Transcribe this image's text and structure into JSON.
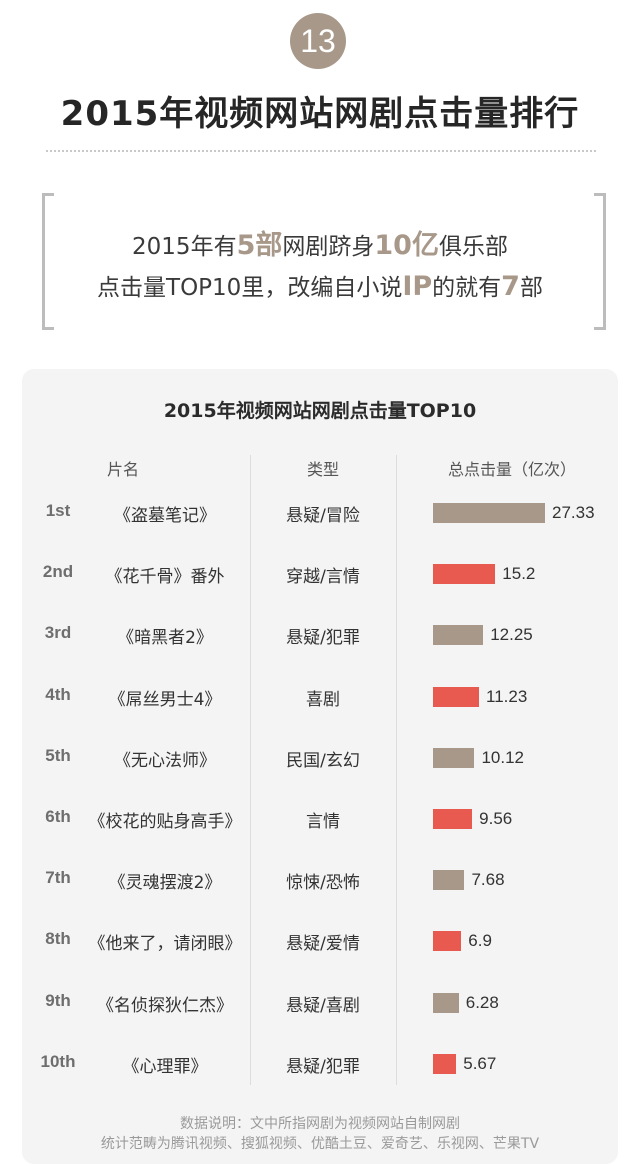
{
  "header": {
    "badge": "13",
    "title": "2015年视频网站网剧点击量排行"
  },
  "quote": {
    "line1": [
      {
        "text": "2015年有",
        "hl": false
      },
      {
        "text": "5部",
        "hl": true
      },
      {
        "text": "网剧跻身",
        "hl": false
      },
      {
        "text": "10亿",
        "hl": true
      },
      {
        "text": "俱乐部",
        "hl": false
      }
    ],
    "line2": [
      {
        "text": "点击量TOP10里，改编自小说",
        "hl": false
      },
      {
        "text": "IP",
        "hl": true
      },
      {
        "text": "的就有",
        "hl": false
      },
      {
        "text": "7",
        "hl": true
      },
      {
        "text": "部",
        "hl": false
      }
    ]
  },
  "colors": {
    "tan": "#a8988a",
    "red": "#e85a4f"
  },
  "chart_data": {
    "type": "bar",
    "title": "2015年视频网站网剧点击量TOP10",
    "columns": {
      "name": "片名",
      "genre": "类型",
      "value": "总点击量（亿次）"
    },
    "xlim": [
      0,
      27.33
    ],
    "rows": [
      {
        "rank": "1st",
        "name": "《盗墓笔记》",
        "genre": "悬疑/冒险",
        "value": 27.33,
        "color": "#a8988a"
      },
      {
        "rank": "2nd",
        "name": "《花千骨》番外",
        "genre": "穿越/言情",
        "value": 15.2,
        "color": "#e85a4f"
      },
      {
        "rank": "3rd",
        "name": "《暗黑者2》",
        "genre": "悬疑/犯罪",
        "value": 12.25,
        "color": "#a8988a"
      },
      {
        "rank": "4th",
        "name": "《屌丝男士4》",
        "genre": "喜剧",
        "value": 11.23,
        "color": "#e85a4f"
      },
      {
        "rank": "5th",
        "name": "《无心法师》",
        "genre": "民国/玄幻",
        "value": 10.12,
        "color": "#a8988a"
      },
      {
        "rank": "6th",
        "name": "《校花的贴身高手》",
        "genre": "言情",
        "value": 9.56,
        "color": "#e85a4f"
      },
      {
        "rank": "7th",
        "name": "《灵魂摆渡2》",
        "genre": "惊悚/恐怖",
        "value": 7.68,
        "color": "#a8988a"
      },
      {
        "rank": "8th",
        "name": "《他来了，请闭眼》",
        "genre": "悬疑/爱情",
        "value": 6.9,
        "color": "#e85a4f"
      },
      {
        "rank": "9th",
        "name": "《名侦探狄仁杰》",
        "genre": "悬疑/喜剧",
        "value": 6.28,
        "color": "#a8988a"
      },
      {
        "rank": "10th",
        "name": "《心理罪》",
        "genre": "悬疑/犯罪",
        "value": 5.67,
        "color": "#e85a4f"
      }
    ]
  },
  "footnote": {
    "line1": "数据说明：文中所指网剧为视频网站自制网剧",
    "line2": "统计范畴为腾讯视频、搜狐视频、优酷土豆、爱奇艺、乐视网、芒果TV"
  }
}
